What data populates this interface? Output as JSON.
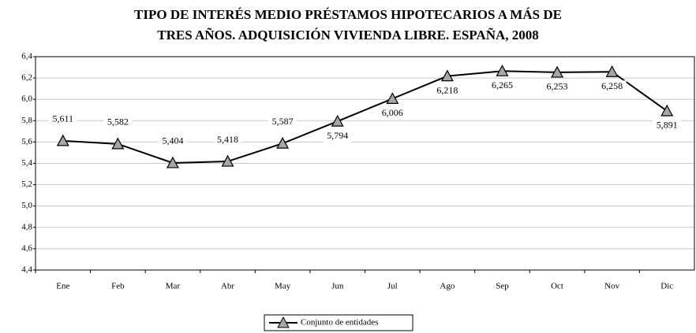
{
  "chart_data": {
    "type": "line",
    "title": [
      "TIPO DE INTERÉS MEDIO PRÉSTAMOS HIPOTECARIOS A MÁS DE",
      "TRES AÑOS. ADQUISICIÓN VIVIENDA LIBRE. ESPAÑA, 2008"
    ],
    "categories": [
      "Ene",
      "Feb",
      "Mar",
      "Abr",
      "May",
      "Jun",
      "Jul",
      "Ago",
      "Sep",
      "Oct",
      "Nov",
      "Dic"
    ],
    "series": [
      {
        "name": "Conjunto de entidades",
        "color": "#000000",
        "marker_color": "#a6a6a6",
        "values": [
          5.611,
          5.582,
          5.404,
          5.418,
          5.587,
          5.794,
          6.006,
          6.218,
          6.265,
          6.253,
          6.258,
          5.891
        ],
        "value_labels": [
          "5,611",
          "5,582",
          "5,404",
          "5,418",
          "5,587",
          "5,794",
          "6,006",
          "6,218",
          "6,265",
          "6,253",
          "6,258",
          "5,891"
        ]
      }
    ],
    "ylim": [
      4.4,
      6.4
    ],
    "yticks": [
      {
        "value": 4.4,
        "label": "4,4"
      },
      {
        "value": 4.6,
        "label": "4,6"
      },
      {
        "value": 4.8,
        "label": "4,8"
      },
      {
        "value": 5.0,
        "label": "5,0"
      },
      {
        "value": 5.2,
        "label": "5,2"
      },
      {
        "value": 5.4,
        "label": "5,4"
      },
      {
        "value": 5.6,
        "label": "5,6"
      },
      {
        "value": 5.8,
        "label": "5,8"
      },
      {
        "value": 6.0,
        "label": "6,0"
      },
      {
        "value": 6.2,
        "label": "6,2"
      },
      {
        "value": 6.4,
        "label": "6,4"
      }
    ],
    "grid": true,
    "legend": "bottom"
  }
}
